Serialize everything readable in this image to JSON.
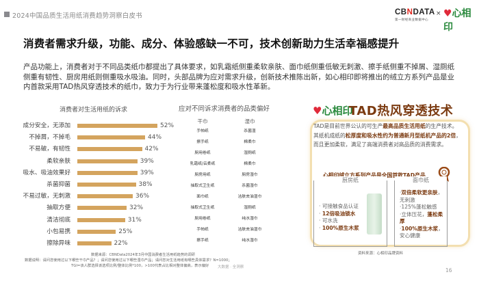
{
  "header": {
    "report_title": "2024中国品质生活用纸消费趋势洞察白皮书",
    "brand_cbn": "CBNDATA",
    "brand_cbn_sub": "第一财经商业数据中心",
    "brand_times": "×",
    "brand_xxy": "心相印"
  },
  "headline": "消费者需求升级，功能、成分、体验感缺一不可，技术创新助力生活幸福感提升",
  "intro": "产品功能上，消费者对于不同品类纸巾都提出了具体要求，如乳霜纸侧重柔软亲肤、面巾纸侧重低敏无刺激、擦手纸侧重不掉屑、湿厕纸侧重有韧性、厨房用纸则侧重吸水吸油。同时，头部品牌为应对需求升级，创新技术推陈出新，如心相印即将推出的绒立方系列产品是业内首款采用TAD热风穿透技术的纸巾，致力于为行业带来蓬松度和吸水性革新。",
  "chart_data": {
    "type": "bar",
    "orientation": "horizontal",
    "title": "消费者对生活用纸的诉求",
    "categories": [
      "成分安全，无添加",
      "不掉屑，不掉毛",
      "不易破，有韧性",
      "柔软亲肤",
      "吸水、吸油效果好",
      "杀菌抑菌",
      "不易过敏，无刺激",
      "抽取方便",
      "清洁彻底",
      "小包易携",
      "擦除异味"
    ],
    "values": [
      52,
      44,
      42,
      39,
      39,
      38,
      36,
      32,
      31,
      25,
      22
    ],
    "value_labels": [
      "52%",
      "44%",
      "42%",
      "39%",
      "39%",
      "38%",
      "36%",
      "32%",
      "31%",
      "25%",
      "22%"
    ],
    "unit": "%",
    "bar_color": "#d4a45e",
    "xlabel": "",
    "ylabel": ""
  },
  "preferences": {
    "title": "应对不同诉求消费者的品类偏好",
    "col_dry": "干巾",
    "col_wet": "湿巾",
    "rows": [
      {
        "dry": "手帕纸",
        "wet": "杀菌湿"
      },
      {
        "dry": "擦手纸",
        "wet": "棉柔巾"
      },
      {
        "dry": "厨用卷纸",
        "wet": "湿厕纸"
      },
      {
        "dry": "乳霜纸/云柔纸",
        "wet": "棉柔巾"
      },
      {
        "dry": "厨房用纸",
        "wet": "厨房湿巾"
      },
      {
        "dry": "抽取式卫生纸",
        "wet": "杀菌湿巾"
      },
      {
        "dry": "面巾纸",
        "wet": "洁肤去油湿巾"
      },
      {
        "dry": "抽取式卫生纸",
        "wet": "湿厕纸"
      },
      {
        "dry": "厨用卷纸",
        "wet": "纯水湿巾"
      },
      {
        "dry": "手帕纸",
        "wet": "洁肤去油湿巾"
      },
      {
        "dry": "擦手纸",
        "wet": "纯水湿巾"
      }
    ]
  },
  "tad": {
    "logo": "心相印",
    "title": "TAD热风穿透技术",
    "p1_a": "TAD是目前世界公认的可生产",
    "p1_b": "最高品质生活用纸",
    "p1_c": "的生产技术。其纸机成纸的",
    "p1_d": "松厚度和吸水性约为普通新月型纸机产品的2倍",
    "p1_e": "，而且更加柔软，满足了高端消费者对高品质的消费需求。",
    "series_line": "心相印绒立方系列产品是全国首款TAD产品",
    "kitchen": {
      "title": "厨房纸",
      "items": [
        {
          "text": "可接触食品认证",
          "highlight": false
        },
        {
          "text": "12倍吸油锁水",
          "highlight": true
        },
        {
          "text": "可水洗",
          "highlight": false
        },
        {
          "text": "100%原生木浆",
          "highlight": true
        }
      ]
    },
    "facial": {
      "title": "面巾纸",
      "l1_hl": "双倍柔软更亲肤",
      "l1_rest": "，无刺激",
      "l2": "125%蓬松触感",
      "l3_a": "立体压花，",
      "l3_hl": "蓬松柔厚",
      "l4_hl": "100%原生木浆",
      "l4_rest": "，安心健康"
    },
    "source": "资料来源：心相印品牌资料"
  },
  "footnotes": {
    "source": "数据来源：CBNData2024年3月中国消费者生活用纸趋势的调研",
    "note": "数据说明：请问您使用过以下哪些干巾产品？；请问您使用过以下哪些湿巾产品；请问您对生活用纸有哪些具体需求？N=1000；",
    "tgi": "TGI=该人群选择该选项比例/整体比例*100，>100代表占比相对整体偏高，表示偏好",
    "watermark": "大数据 · 全洞察"
  },
  "page_number": "16"
}
